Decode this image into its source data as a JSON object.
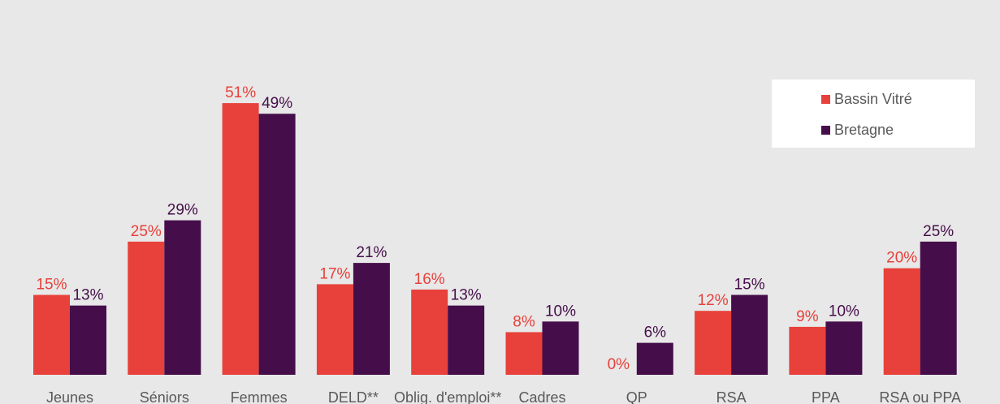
{
  "chart_data": {
    "type": "bar",
    "categories": [
      "Jeunes",
      "Séniors",
      "Femmes",
      "DELD**",
      "Oblig. d'emploi**",
      "Cadres",
      "QP",
      "RSA",
      "PPA",
      "RSA ou PPA"
    ],
    "series": [
      {
        "name": "Bassin Vitré",
        "color": "#e8403a",
        "values": [
          15,
          25,
          51,
          17,
          16,
          8,
          0,
          12,
          9,
          20
        ],
        "value_labels": [
          "15%",
          "25%",
          "51%",
          "17%",
          "16%",
          "8%",
          "0%",
          "12%",
          "9%",
          "20%"
        ]
      },
      {
        "name": "Bretagne",
        "color": "#450e4a",
        "values": [
          13,
          29,
          49,
          21,
          13,
          10,
          6,
          15,
          10,
          25
        ],
        "value_labels": [
          "13%",
          "29%",
          "49%",
          "21%",
          "13%",
          "10%",
          "6%",
          "15%",
          "10%",
          "25%"
        ]
      }
    ],
    "ylim": [
      0,
      60
    ],
    "legend": "top-right"
  }
}
